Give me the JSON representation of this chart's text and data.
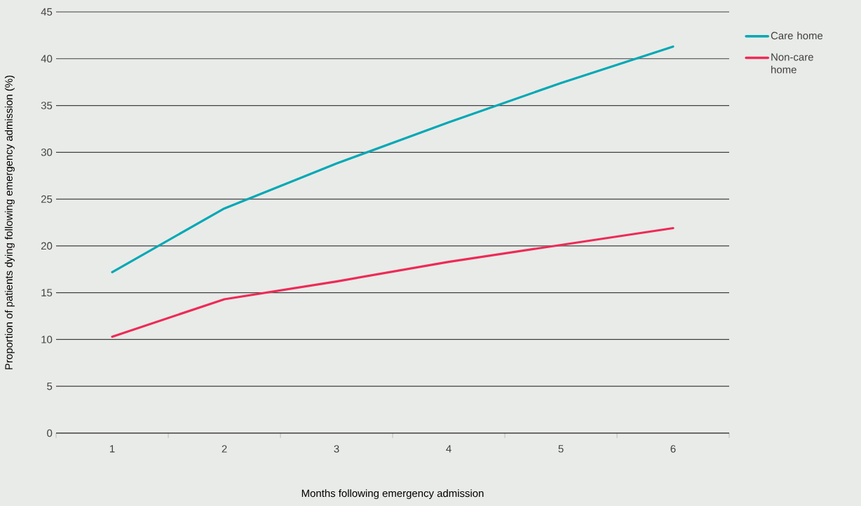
{
  "chart_data": {
    "type": "line",
    "xlabel": "Months following emergency admission",
    "ylabel": "Proportion of patients dying following emergency admission (%)",
    "categories": [
      "1",
      "2",
      "3",
      "4",
      "5",
      "6"
    ],
    "series": [
      {
        "name": "Care home",
        "color": "#00a8b5",
        "values": [
          17.2,
          24.0,
          28.8,
          33.2,
          37.4,
          41.3
        ]
      },
      {
        "name": "Non-care home",
        "color": "#ee2a57",
        "values": [
          10.3,
          14.3,
          16.2,
          18.3,
          20.1,
          21.9
        ]
      }
    ],
    "ylim": [
      0,
      45
    ],
    "yticks": [
      0,
      5,
      10,
      15,
      20,
      25,
      30,
      35,
      40,
      45
    ],
    "grid": "y",
    "legend": "right",
    "marker": "none",
    "line_style": "solid"
  }
}
